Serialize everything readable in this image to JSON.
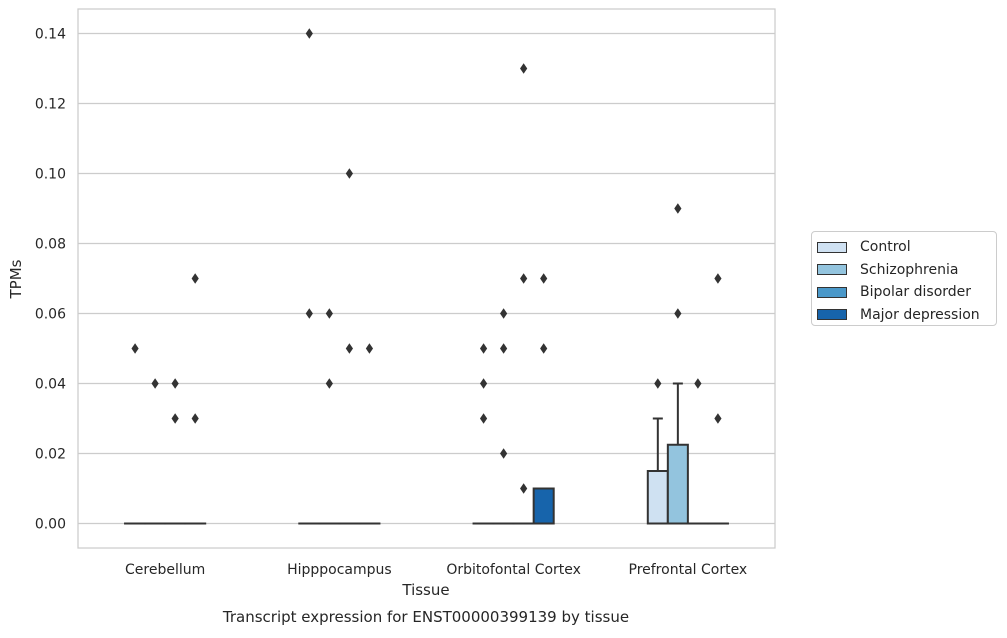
{
  "chart_data": {
    "type": "box",
    "title": "Transcript expression for ENST00000399139 by tissue",
    "xlabel": "Tissue",
    "ylabel": "TPMs",
    "ylim": [
      -0.007,
      0.147
    ],
    "yticks": [
      0.0,
      0.02,
      0.04,
      0.06,
      0.08,
      0.1,
      0.12,
      0.14
    ],
    "ytick_labels": [
      "0.00",
      "0.02",
      "0.04",
      "0.06",
      "0.08",
      "0.10",
      "0.12",
      "0.14"
    ],
    "grid": true,
    "legend_position": "right",
    "categories": [
      "Cerebellum",
      "Hipppocampus",
      "Orbitofontal Cortex",
      "Prefrontal Cortex"
    ],
    "series": [
      {
        "name": "Control",
        "color": "#cfe1f2",
        "boxes": [
          {
            "q1": 0,
            "median": 0,
            "q3": 0,
            "whisker_low": 0,
            "whisker_high": 0,
            "outliers": [
              0.05
            ]
          },
          {
            "q1": 0,
            "median": 0,
            "q3": 0,
            "whisker_low": 0,
            "whisker_high": 0,
            "outliers": [
              0.06,
              0.14
            ]
          },
          {
            "q1": 0,
            "median": 0,
            "q3": 0,
            "whisker_low": 0,
            "whisker_high": 0,
            "outliers": [
              0.03,
              0.04,
              0.05
            ]
          },
          {
            "q1": 0,
            "median": 0,
            "q3": 0.015,
            "whisker_low": 0,
            "whisker_high": 0.03,
            "outliers": [
              0.04
            ]
          }
        ]
      },
      {
        "name": "Schizophrenia",
        "color": "#93c4de",
        "boxes": [
          {
            "q1": 0,
            "median": 0,
            "q3": 0,
            "whisker_low": 0,
            "whisker_high": 0,
            "outliers": [
              0.04
            ]
          },
          {
            "q1": 0,
            "median": 0,
            "q3": 0,
            "whisker_low": 0,
            "whisker_high": 0,
            "outliers": [
              0.04,
              0.06
            ]
          },
          {
            "q1": 0,
            "median": 0,
            "q3": 0,
            "whisker_low": 0,
            "whisker_high": 0,
            "outliers": [
              0.02,
              0.05,
              0.06
            ]
          },
          {
            "q1": 0,
            "median": 0,
            "q3": 0.0225,
            "whisker_low": 0,
            "whisker_high": 0.04,
            "outliers": [
              0.06,
              0.09
            ]
          }
        ]
      },
      {
        "name": "Bipolar disorder",
        "color": "#4a98c9",
        "boxes": [
          {
            "q1": 0,
            "median": 0,
            "q3": 0,
            "whisker_low": 0,
            "whisker_high": 0,
            "outliers": [
              0.03,
              0.04
            ]
          },
          {
            "q1": 0,
            "median": 0,
            "q3": 0,
            "whisker_low": 0,
            "whisker_high": 0,
            "outliers": [
              0.05,
              0.1
            ]
          },
          {
            "q1": 0,
            "median": 0,
            "q3": 0,
            "whisker_low": 0,
            "whisker_high": 0,
            "outliers": [
              0.01,
              0.07,
              0.13
            ]
          },
          {
            "q1": 0,
            "median": 0,
            "q3": 0,
            "whisker_low": 0,
            "whisker_high": 0,
            "outliers": [
              0.04
            ]
          }
        ]
      },
      {
        "name": "Major depression",
        "color": "#1764ab",
        "boxes": [
          {
            "q1": 0,
            "median": 0,
            "q3": 0,
            "whisker_low": 0,
            "whisker_high": 0,
            "outliers": [
              0.03,
              0.07
            ]
          },
          {
            "q1": 0,
            "median": 0,
            "q3": 0,
            "whisker_low": 0,
            "whisker_high": 0,
            "outliers": [
              0.05
            ]
          },
          {
            "q1": 0,
            "median": 0,
            "q3": 0.01,
            "whisker_low": 0,
            "whisker_high": 0.01,
            "outliers": [
              0.05,
              0.07
            ]
          },
          {
            "q1": 0,
            "median": 0,
            "q3": 0,
            "whisker_low": 0,
            "whisker_high": 0,
            "outliers": [
              0.03,
              0.07
            ]
          }
        ]
      }
    ]
  }
}
